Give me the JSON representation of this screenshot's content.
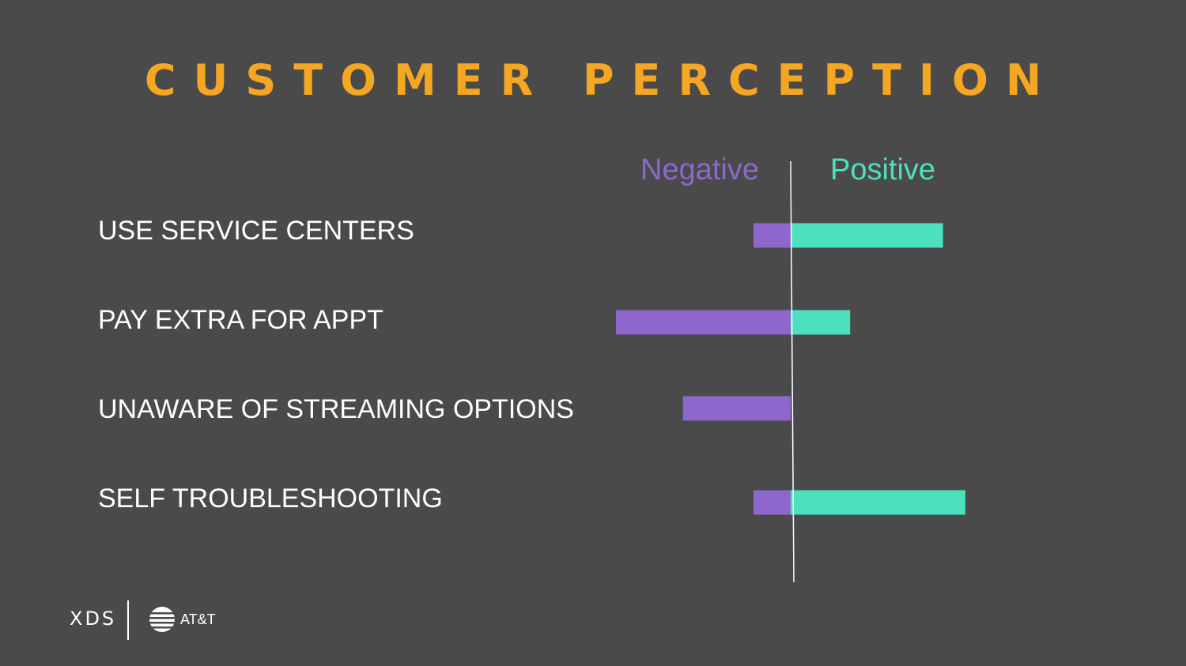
{
  "slide": {
    "title": "CUSTOMER PERCEPTION"
  },
  "footer": {
    "brand_left": "XDS",
    "brand_right": "AT&T",
    "brand_right_icon": "globe-logo-icon"
  },
  "colors": {
    "background": "#4a4a4a",
    "title": "#f5a623",
    "negative": "#8e67cc",
    "positive": "#4de0c0"
  },
  "chart_data": {
    "type": "bar",
    "orientation": "horizontal-diverging",
    "categories": [
      "USE SERVICE CENTERS",
      "PAY EXTRA FOR APPT",
      "UNAWARE OF STREAMING OPTIONS",
      "SELF TROUBLESHOOTING"
    ],
    "series": [
      {
        "name": "Negative",
        "values": [
          -1,
          -4.7,
          -2.9,
          -1
        ]
      },
      {
        "name": "Positive",
        "values": [
          4.1,
          1.6,
          0,
          4.7
        ]
      }
    ],
    "xlim": [
      -5,
      5
    ],
    "legend": "top",
    "grid": false
  }
}
